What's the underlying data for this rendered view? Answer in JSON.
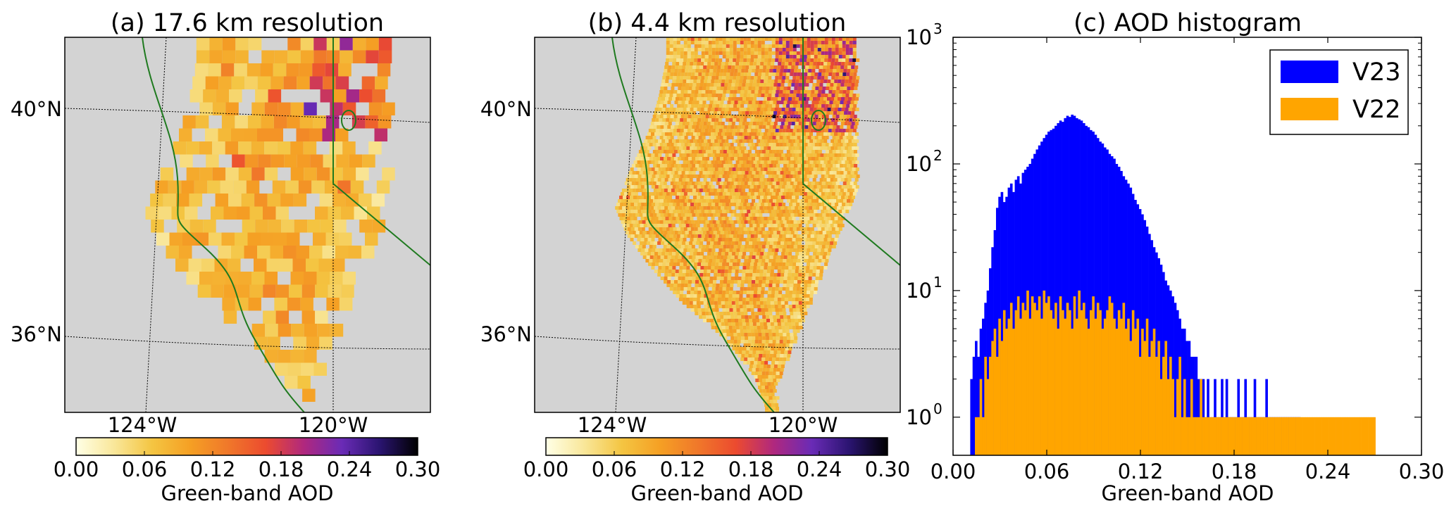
{
  "panels": {
    "a": {
      "title": "(a) 17.6 km resolution"
    },
    "b": {
      "title": "(b) 4.4 km resolution"
    },
    "c": {
      "title": "(c) AOD histogram"
    }
  },
  "map": {
    "lat_labels": [
      "40°N",
      "36°N"
    ],
    "lon_labels": [
      "124°W",
      "120°W"
    ],
    "background_color": "#d3d3d3",
    "coast_color": "#1f7a1f"
  },
  "colorbar": {
    "ticks": [
      "0.00",
      "0.06",
      "0.12",
      "0.18",
      "0.24",
      "0.30"
    ],
    "label": "Green-band AOD",
    "range": [
      0,
      0.3
    ],
    "colormap": [
      "#ffffe6",
      "#f9e79a",
      "#f4c542",
      "#f5a024",
      "#f0782a",
      "#ec4b2f",
      "#b0287e",
      "#6a2bb6",
      "#2a1470",
      "#000000"
    ]
  },
  "chart_data": [
    {
      "type": "heatmap",
      "panel": "a",
      "title": "(a) 17.6 km resolution",
      "lat_ticks": [
        "40°N",
        "36°N"
      ],
      "lon_ticks": [
        "124°W",
        "120°W"
      ],
      "colorbar_label": "Green-band AOD",
      "colorbar_range": [
        0,
        0.3
      ]
    },
    {
      "type": "heatmap",
      "panel": "b",
      "title": "(b) 4.4 km resolution",
      "lat_ticks": [
        "40°N",
        "36°N"
      ],
      "lon_ticks": [
        "124°W",
        "120°W"
      ],
      "colorbar_label": "Green-band AOD",
      "colorbar_range": [
        0,
        0.3
      ]
    },
    {
      "type": "bar",
      "panel": "c",
      "title": "(c) AOD histogram",
      "xlabel": "Green-band AOD",
      "ylabel": "",
      "xlim": [
        0,
        0.3
      ],
      "ylim": [
        0.5,
        1000
      ],
      "yscale": "log",
      "x_ticks": [
        "0.00",
        "0.06",
        "0.12",
        "0.18",
        "0.24",
        "0.30"
      ],
      "y_ticks": [
        "10",
        "10",
        "10",
        "10"
      ],
      "y_tick_exponents": [
        "0",
        "1",
        "2",
        "3"
      ],
      "legend_position": "top-right",
      "series": [
        {
          "name": "V23",
          "color": "#0000ff",
          "bin_start": 0.011,
          "bin_width": 0.0015,
          "values": [
            2,
            3,
            4,
            3,
            5,
            6,
            8,
            10,
            15,
            22,
            30,
            45,
            55,
            60,
            50,
            55,
            65,
            70,
            60,
            75,
            80,
            70,
            85,
            90,
            95,
            100,
            110,
            120,
            130,
            140,
            150,
            160,
            170,
            180,
            185,
            190,
            200,
            210,
            220,
            215,
            230,
            240,
            235,
            245,
            240,
            230,
            225,
            220,
            210,
            200,
            195,
            185,
            180,
            170,
            160,
            150,
            145,
            135,
            130,
            120,
            115,
            110,
            100,
            95,
            88,
            80,
            75,
            70,
            65,
            58,
            52,
            48,
            44,
            40,
            36,
            32,
            28,
            25,
            22,
            20,
            18,
            16,
            14,
            12,
            11,
            10,
            9,
            8,
            7,
            6,
            5,
            5,
            4,
            4,
            3,
            3,
            3,
            2,
            2,
            2,
            1,
            2,
            1,
            1,
            2,
            1,
            1,
            2,
            1,
            2,
            1,
            1,
            1,
            1,
            2,
            1,
            1,
            2,
            1,
            1,
            1,
            2,
            1,
            1,
            1,
            1,
            2,
            1,
            1,
            1,
            1,
            1,
            1,
            1,
            1,
            1,
            1,
            1,
            1,
            1,
            1
          ]
        },
        {
          "name": "V22",
          "color": "#ffa500",
          "bin_start": 0.014,
          "bin_width": 0.0015,
          "values": [
            1,
            1,
            2,
            1,
            3,
            2,
            3,
            4,
            5,
            3,
            6,
            4,
            7,
            5,
            6,
            8,
            5,
            7,
            9,
            6,
            8,
            7,
            10,
            6,
            9,
            8,
            7,
            9,
            6,
            10,
            8,
            9,
            7,
            6,
            8,
            5,
            9,
            7,
            6,
            8,
            7,
            5,
            9,
            6,
            10,
            7,
            8,
            6,
            5,
            7,
            9,
            6,
            8,
            7,
            5,
            6,
            7,
            9,
            8,
            6,
            5,
            7,
            6,
            8,
            5,
            6,
            4,
            7,
            5,
            6,
            3,
            5,
            4,
            6,
            3,
            4,
            5,
            3,
            4,
            2,
            3,
            4,
            2,
            3,
            2,
            1,
            2,
            3,
            1,
            2,
            1,
            1,
            2,
            1,
            1,
            1,
            2,
            1,
            1,
            1,
            1,
            1,
            1,
            1,
            1,
            1,
            1,
            1,
            1,
            1,
            1,
            1,
            1,
            1,
            1,
            1,
            1,
            1,
            1,
            1,
            1,
            1,
            1,
            1,
            1,
            1,
            1,
            1,
            1,
            1,
            1,
            1,
            1,
            1,
            1,
            1,
            1,
            1,
            1,
            1,
            1,
            1,
            1,
            1,
            1,
            1,
            1,
            1,
            1,
            1,
            1,
            1,
            1,
            1,
            1,
            1,
            1,
            1,
            1,
            1,
            1,
            1,
            1,
            1,
            1,
            1,
            1,
            1,
            1,
            1,
            1
          ]
        }
      ]
    }
  ]
}
